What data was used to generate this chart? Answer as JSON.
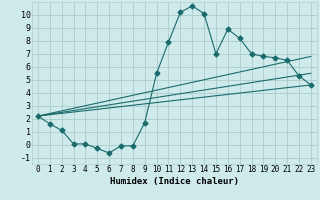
{
  "xlabel": "Humidex (Indice chaleur)",
  "background_color": "#ceeaea",
  "grid_color": "#b0d0d0",
  "line_color": "#1a6b6b",
  "xlim": [
    -0.5,
    23.5
  ],
  "ylim": [
    -1.5,
    11.0
  ],
  "yticks": [
    -1,
    0,
    1,
    2,
    3,
    4,
    5,
    6,
    7,
    8,
    9,
    10
  ],
  "xticks": [
    0,
    1,
    2,
    3,
    4,
    5,
    6,
    7,
    8,
    9,
    10,
    11,
    12,
    13,
    14,
    15,
    16,
    17,
    18,
    19,
    20,
    21,
    22,
    23
  ],
  "line1_x": [
    0,
    1,
    2,
    3,
    4,
    5,
    6,
    7,
    8,
    9,
    10,
    11,
    12,
    13,
    14,
    15,
    16,
    17,
    18,
    19,
    20,
    21,
    22,
    23
  ],
  "line1_y": [
    2.2,
    1.6,
    1.1,
    0.05,
    0.05,
    -0.3,
    -0.65,
    -0.1,
    -0.1,
    1.7,
    5.5,
    7.9,
    10.2,
    10.7,
    10.1,
    7.0,
    8.9,
    8.2,
    7.0,
    6.8,
    6.7,
    6.5,
    5.3,
    4.6
  ],
  "line2_x": [
    0,
    23
  ],
  "line2_y": [
    2.2,
    6.8
  ],
  "line3_x": [
    0,
    23
  ],
  "line3_y": [
    2.2,
    5.5
  ],
  "line4_x": [
    0,
    23
  ],
  "line4_y": [
    2.2,
    4.6
  ]
}
